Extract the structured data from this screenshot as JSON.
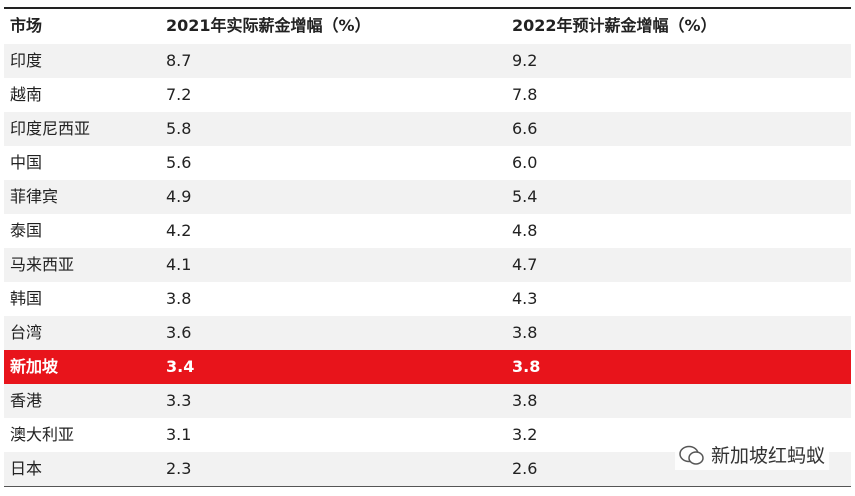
{
  "table": {
    "header": [
      "市场",
      "2021年实际薪金增幅（%）",
      "2022年预计薪金增幅（%）"
    ],
    "rows": [
      [
        "印度",
        "8.7",
        "9.2"
      ],
      [
        "越南",
        "7.2",
        "7.8"
      ],
      [
        "印度尼西亚",
        "5.8",
        "6.6"
      ],
      [
        "中国",
        "5.6",
        "6.0"
      ],
      [
        "菲律宾",
        "4.9",
        "5.4"
      ],
      [
        "泰国",
        "4.2",
        "4.8"
      ],
      [
        "马来西亚",
        "4.1",
        "4.7"
      ],
      [
        "韩国",
        "3.8",
        "4.3"
      ],
      [
        "台湾",
        "3.6",
        "3.8"
      ],
      [
        "新加坡",
        "3.4",
        "3.8"
      ],
      [
        "香港",
        "3.3",
        "3.8"
      ],
      [
        "澳大利亚",
        "3.1",
        "3.2"
      ],
      [
        "日本",
        "2.3",
        "2.6"
      ]
    ],
    "highlight_row": 9,
    "highlight_color": "#e8141b"
  },
  "watermark": "新加坡红蚂蚁"
}
